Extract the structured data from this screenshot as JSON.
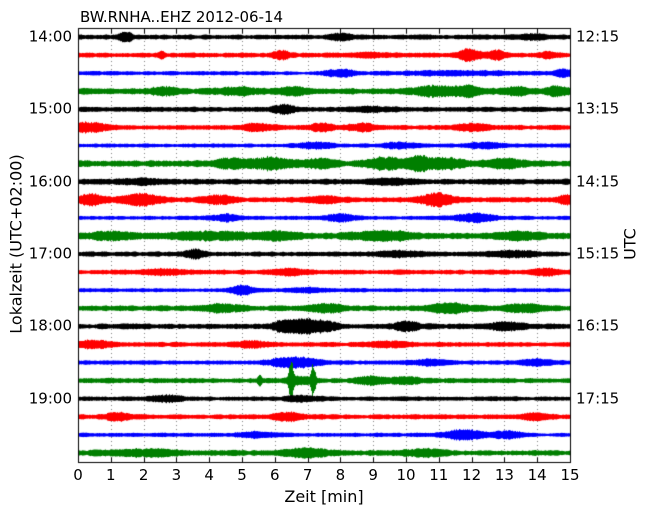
{
  "chart_data": {
    "type": "line",
    "subtype": "helicorder-dayplot",
    "title": "BW.RNHA..EHZ 2012-06-14",
    "xlabel": "Zeit [min]",
    "ylabel_left": "Lokalzeit (UTC+02:00)",
    "ylabel_right": "UTC",
    "xlim": [
      0,
      15
    ],
    "minutes_per_line": 15,
    "x_tick_labels": [
      "0",
      "1",
      "2",
      "3",
      "4",
      "5",
      "6",
      "7",
      "8",
      "9",
      "10",
      "11",
      "12",
      "13",
      "14",
      "15"
    ],
    "left_tick_labels": [
      {
        "row": 0,
        "label": "14:00"
      },
      {
        "row": 4,
        "label": "15:00"
      },
      {
        "row": 8,
        "label": "16:00"
      },
      {
        "row": 12,
        "label": "17:00"
      },
      {
        "row": 16,
        "label": "18:00"
      },
      {
        "row": 20,
        "label": "19:00"
      }
    ],
    "right_tick_labels": [
      {
        "row": 0,
        "label": "12:15"
      },
      {
        "row": 4,
        "label": "13:15"
      },
      {
        "row": 8,
        "label": "14:15"
      },
      {
        "row": 12,
        "label": "15:15"
      },
      {
        "row": 16,
        "label": "16:15"
      },
      {
        "row": 20,
        "label": "17:15"
      }
    ],
    "grid": {
      "vertical_dotted": true,
      "color": "#808080"
    },
    "axes_color": "#000000",
    "colors": {
      "black": "#000000",
      "red": "#ff0000",
      "blue": "#0000ff",
      "green": "#007f00"
    },
    "color_cycle": [
      "black",
      "red",
      "blue",
      "green"
    ],
    "traces": [
      {
        "start_local": "14:00",
        "color": "black",
        "base": 2.0,
        "bursts": [
          [
            1.45,
            3.5,
            0.15
          ],
          [
            8.0,
            2.5,
            0.2
          ],
          [
            13.8,
            1.5,
            0.3
          ]
        ]
      },
      {
        "start_local": "14:15",
        "color": "red",
        "base": 2.0,
        "bursts": [
          [
            2.55,
            3,
            0.07
          ],
          [
            6.2,
            3,
            0.2
          ],
          [
            9.0,
            1.5,
            0.4
          ],
          [
            11.9,
            4.5,
            0.25
          ],
          [
            12.75,
            3.5,
            0.2
          ],
          [
            14.3,
            2,
            0.2
          ]
        ]
      },
      {
        "start_local": "14:30",
        "color": "blue",
        "base": 1.7,
        "bursts": [
          [
            8.0,
            2.5,
            0.3
          ],
          [
            11.5,
            1.2,
            1.5
          ],
          [
            14.8,
            2.5,
            0.2
          ]
        ]
      },
      {
        "start_local": "14:45",
        "color": "green",
        "base": 2.5,
        "bursts": [
          [
            2.6,
            2.5,
            0.3
          ],
          [
            4.8,
            2,
            0.5
          ],
          [
            6.6,
            2.5,
            0.3
          ],
          [
            10.9,
            3.5,
            0.5
          ],
          [
            11.9,
            3,
            0.3
          ],
          [
            13.3,
            2.5,
            0.3
          ],
          [
            14.6,
            3,
            0.25
          ]
        ]
      },
      {
        "start_local": "15:00",
        "color": "black",
        "base": 2.0,
        "bursts": [
          [
            6.25,
            3.5,
            0.25
          ],
          [
            9.0,
            1.5,
            0.5
          ]
        ]
      },
      {
        "start_local": "15:15",
        "color": "red",
        "base": 2.1,
        "bursts": [
          [
            0.3,
            3.5,
            0.4
          ],
          [
            5.5,
            2.5,
            0.3
          ],
          [
            7.4,
            3,
            0.25
          ],
          [
            8.6,
            2.5,
            0.3
          ],
          [
            12.0,
            1.8,
            0.4
          ]
        ]
      },
      {
        "start_local": "15:30",
        "color": "blue",
        "base": 1.7,
        "bursts": [
          [
            7.2,
            2,
            0.4
          ],
          [
            9.8,
            2,
            0.4
          ],
          [
            12.4,
            2,
            0.4
          ]
        ]
      },
      {
        "start_local": "15:45",
        "color": "green",
        "base": 2.8,
        "bursts": [
          [
            4.6,
            3,
            0.3
          ],
          [
            5.9,
            4,
            0.45
          ],
          [
            7.4,
            2.5,
            0.3
          ],
          [
            9.4,
            4,
            0.4
          ],
          [
            10.4,
            5,
            0.25
          ],
          [
            11.2,
            3,
            0.4
          ],
          [
            13.0,
            2.5,
            0.4
          ]
        ]
      },
      {
        "start_local": "16:00",
        "color": "black",
        "base": 2.3,
        "bursts": [
          [
            2.0,
            1.5,
            0.5
          ],
          [
            9.5,
            1.5,
            0.5
          ]
        ]
      },
      {
        "start_local": "16:15",
        "color": "red",
        "base": 2.2,
        "bursts": [
          [
            0.35,
            3.5,
            0.3
          ],
          [
            1.9,
            4,
            0.45
          ],
          [
            4.3,
            3,
            0.35
          ],
          [
            7.5,
            2,
            0.4
          ],
          [
            10.9,
            4.5,
            0.35
          ],
          [
            14.9,
            3,
            0.2
          ]
        ]
      },
      {
        "start_local": "16:30",
        "color": "blue",
        "base": 1.7,
        "bursts": [
          [
            4.5,
            2.5,
            0.3
          ],
          [
            8.0,
            2.5,
            0.35
          ],
          [
            12.1,
            3,
            0.45
          ]
        ]
      },
      {
        "start_local": "16:45",
        "color": "green",
        "base": 2.5,
        "bursts": [
          [
            1.0,
            2.5,
            0.5
          ],
          [
            4.0,
            2.5,
            0.8
          ],
          [
            6.0,
            2.5,
            0.5
          ],
          [
            9.3,
            3,
            0.7
          ],
          [
            13.5,
            2.5,
            0.5
          ]
        ]
      },
      {
        "start_local": "17:00",
        "color": "black",
        "base": 2.0,
        "bursts": [
          [
            3.55,
            3.5,
            0.2
          ],
          [
            9.8,
            1.8,
            0.5
          ],
          [
            13.3,
            2.2,
            0.5
          ]
        ]
      },
      {
        "start_local": "17:15",
        "color": "red",
        "base": 2.0,
        "bursts": [
          [
            2.6,
            2,
            0.4
          ],
          [
            6.5,
            2,
            0.4
          ],
          [
            14.2,
            2,
            0.3
          ]
        ]
      },
      {
        "start_local": "17:30",
        "color": "blue",
        "base": 1.6,
        "bursts": [
          [
            5.0,
            3.5,
            0.25
          ],
          [
            7.0,
            1.5,
            0.4
          ]
        ]
      },
      {
        "start_local": "17:45",
        "color": "green",
        "base": 2.3,
        "bursts": [
          [
            4.4,
            2.5,
            0.4
          ],
          [
            7.6,
            2.5,
            0.4
          ],
          [
            11.4,
            3,
            0.5
          ],
          [
            13.6,
            2.5,
            0.4
          ]
        ]
      },
      {
        "start_local": "18:00",
        "color": "black",
        "base": 2.2,
        "bursts": [
          [
            6.3,
            4,
            0.3
          ],
          [
            6.95,
            4.5,
            0.3
          ],
          [
            7.5,
            3,
            0.3
          ],
          [
            10.0,
            3.5,
            0.25
          ],
          [
            13.0,
            2.5,
            0.4
          ]
        ]
      },
      {
        "start_local": "18:15",
        "color": "red",
        "base": 2.0,
        "bursts": [
          [
            0.5,
            2.5,
            0.4
          ],
          [
            5.3,
            2,
            0.4
          ],
          [
            9.5,
            2,
            0.4
          ]
        ]
      },
      {
        "start_local": "18:30",
        "color": "blue",
        "base": 1.8,
        "bursts": [
          [
            6.3,
            3,
            0.4
          ],
          [
            7.0,
            2.5,
            0.35
          ],
          [
            10.7,
            2,
            0.4
          ],
          [
            14.0,
            2,
            0.4
          ]
        ]
      },
      {
        "start_local": "18:45",
        "color": "green",
        "base": 2.1,
        "bursts": [
          [
            5.52,
            3.5,
            0.05
          ],
          [
            6.49,
            16,
            0.05
          ],
          [
            6.8,
            2.5,
            0.3
          ],
          [
            7.16,
            12,
            0.05
          ],
          [
            8.9,
            2.5,
            0.3
          ],
          [
            9.9,
            2,
            0.4
          ]
        ]
      },
      {
        "start_local": "19:00",
        "color": "black",
        "base": 1.8,
        "bursts": [
          [
            2.7,
            2.5,
            0.35
          ],
          [
            6.8,
            1.8,
            0.4
          ]
        ]
      },
      {
        "start_local": "19:15",
        "color": "red",
        "base": 2.0,
        "bursts": [
          [
            1.2,
            3,
            0.25
          ],
          [
            6.4,
            2.5,
            0.35
          ],
          [
            13.9,
            2,
            0.3
          ]
        ]
      },
      {
        "start_local": "19:30",
        "color": "blue",
        "base": 1.7,
        "bursts": [
          [
            5.4,
            1.8,
            0.4
          ],
          [
            11.75,
            3.5,
            0.4
          ],
          [
            13.1,
            2.5,
            0.35
          ]
        ]
      },
      {
        "start_local": "19:45",
        "color": "green",
        "base": 2.3,
        "bursts": [
          [
            2.0,
            2,
            0.8
          ],
          [
            6.9,
            2.5,
            0.5
          ],
          [
            10.5,
            2.2,
            0.5
          ]
        ]
      }
    ]
  }
}
